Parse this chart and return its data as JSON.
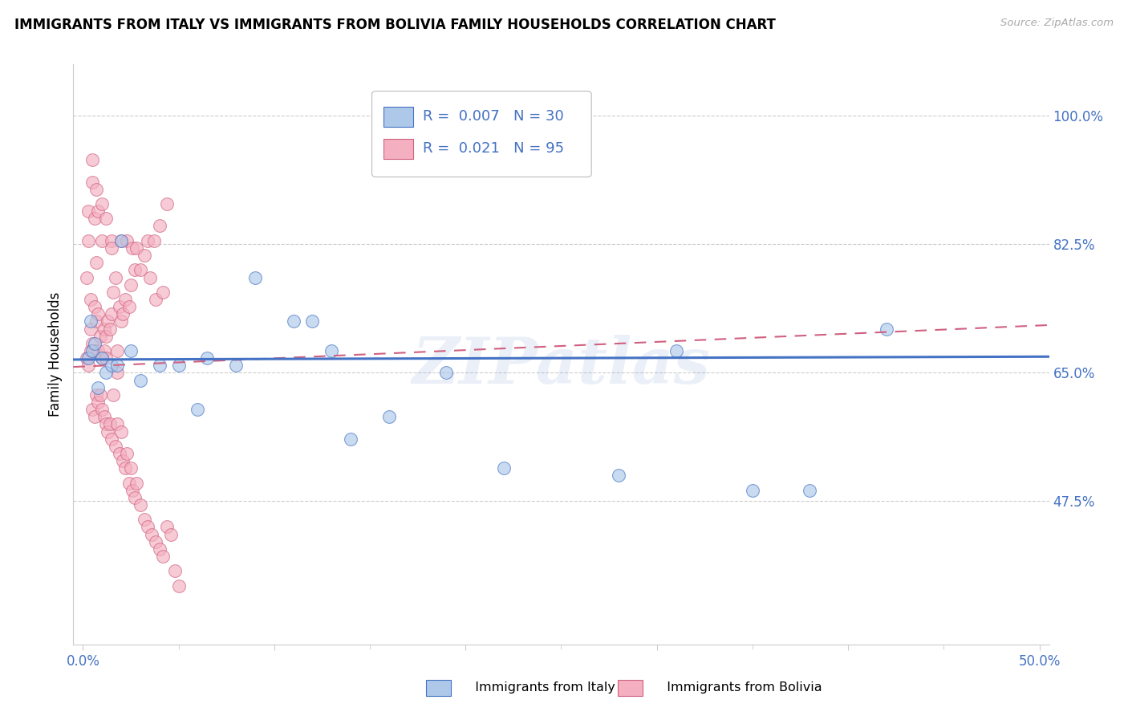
{
  "title": "IMMIGRANTS FROM ITALY VS IMMIGRANTS FROM BOLIVIA FAMILY HOUSEHOLDS CORRELATION CHART",
  "source": "Source: ZipAtlas.com",
  "ylabel": "Family Households",
  "xlim": [
    -0.005,
    0.505
  ],
  "ylim": [
    0.28,
    1.07
  ],
  "xtick_vals": [
    0.0,
    0.1,
    0.2,
    0.3,
    0.4,
    0.5
  ],
  "xticklabels": [
    "0.0%",
    "",
    "",
    "",
    "",
    "50.0%"
  ],
  "yticks_right": [
    0.475,
    0.65,
    0.825,
    1.0
  ],
  "yticklabels_right": [
    "47.5%",
    "65.0%",
    "82.5%",
    "100.0%"
  ],
  "italy_R": 0.007,
  "italy_N": 30,
  "bolivia_R": 0.021,
  "bolivia_N": 95,
  "italy_fill_color": "#adc8e8",
  "italy_edge_color": "#4472c4",
  "bolivia_fill_color": "#f4b0c0",
  "bolivia_edge_color": "#d06080",
  "italy_line_color": "#4472c4",
  "bolivia_line_color": "#d06080",
  "grid_color": "#cccccc",
  "watermark": "ZIPatlas",
  "watermark_color": "#4472c4",
  "tick_color": "#4472c4",
  "title_fontsize": 12,
  "axis_fontsize": 12,
  "legend_fontsize": 13,
  "italy_x": [
    0.003,
    0.004,
    0.005,
    0.006,
    0.01,
    0.012,
    0.015,
    0.018,
    0.02,
    0.025,
    0.03,
    0.04,
    0.05,
    0.06,
    0.065,
    0.08,
    0.09,
    0.11,
    0.12,
    0.13,
    0.14,
    0.16,
    0.19,
    0.22,
    0.28,
    0.31,
    0.35,
    0.38,
    0.42,
    0.008
  ],
  "italy_y": [
    0.67,
    0.72,
    0.68,
    0.69,
    0.67,
    0.65,
    0.66,
    0.66,
    0.83,
    0.68,
    0.64,
    0.66,
    0.66,
    0.6,
    0.67,
    0.66,
    0.78,
    0.72,
    0.72,
    0.68,
    0.56,
    0.59,
    0.65,
    0.52,
    0.51,
    0.68,
    0.49,
    0.49,
    0.71,
    0.63
  ],
  "bolivia_x": [
    0.002,
    0.002,
    0.003,
    0.003,
    0.004,
    0.004,
    0.005,
    0.005,
    0.006,
    0.006,
    0.007,
    0.007,
    0.008,
    0.008,
    0.009,
    0.01,
    0.01,
    0.011,
    0.011,
    0.012,
    0.012,
    0.013,
    0.014,
    0.015,
    0.015,
    0.016,
    0.017,
    0.018,
    0.019,
    0.02,
    0.02,
    0.021,
    0.022,
    0.023,
    0.024,
    0.025,
    0.026,
    0.027,
    0.028,
    0.03,
    0.032,
    0.034,
    0.035,
    0.037,
    0.038,
    0.04,
    0.042,
    0.044,
    0.005,
    0.006,
    0.007,
    0.008,
    0.009,
    0.01,
    0.011,
    0.012,
    0.013,
    0.014,
    0.015,
    0.016,
    0.017,
    0.018,
    0.019,
    0.02,
    0.021,
    0.022,
    0.023,
    0.024,
    0.025,
    0.026,
    0.027,
    0.028,
    0.03,
    0.032,
    0.034,
    0.036,
    0.038,
    0.04,
    0.042,
    0.044,
    0.046,
    0.048,
    0.05,
    0.003,
    0.004,
    0.005,
    0.006,
    0.007,
    0.008,
    0.01,
    0.012,
    0.015,
    0.018
  ],
  "bolivia_y": [
    0.67,
    0.78,
    0.66,
    0.83,
    0.71,
    0.75,
    0.69,
    0.91,
    0.74,
    0.68,
    0.72,
    0.8,
    0.73,
    0.68,
    0.7,
    0.67,
    0.83,
    0.71,
    0.68,
    0.7,
    0.67,
    0.72,
    0.71,
    0.73,
    0.83,
    0.76,
    0.78,
    0.68,
    0.74,
    0.83,
    0.72,
    0.73,
    0.75,
    0.83,
    0.74,
    0.77,
    0.82,
    0.79,
    0.82,
    0.79,
    0.81,
    0.83,
    0.78,
    0.83,
    0.75,
    0.85,
    0.76,
    0.88,
    0.6,
    0.59,
    0.62,
    0.61,
    0.62,
    0.6,
    0.59,
    0.58,
    0.57,
    0.58,
    0.56,
    0.62,
    0.55,
    0.58,
    0.54,
    0.57,
    0.53,
    0.52,
    0.54,
    0.5,
    0.52,
    0.49,
    0.48,
    0.5,
    0.47,
    0.45,
    0.44,
    0.43,
    0.42,
    0.41,
    0.4,
    0.44,
    0.43,
    0.38,
    0.36,
    0.87,
    0.68,
    0.94,
    0.86,
    0.9,
    0.87,
    0.88,
    0.86,
    0.82,
    0.65
  ]
}
